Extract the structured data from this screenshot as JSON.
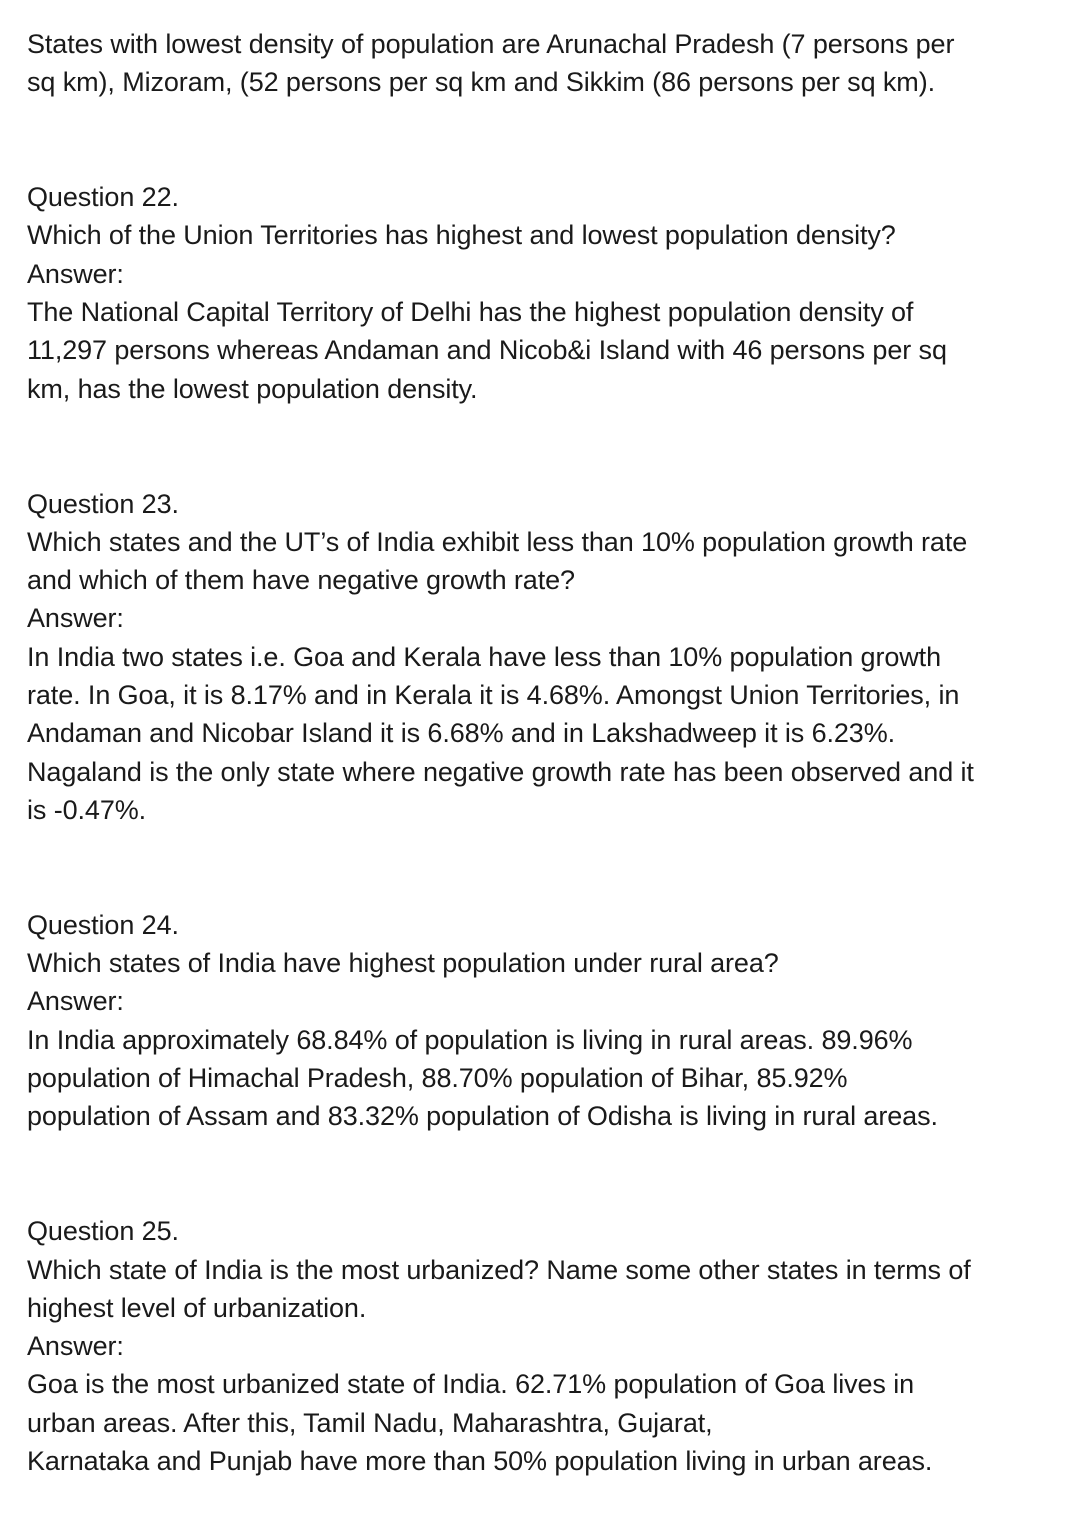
{
  "intro": {
    "lines": [
      "States with lowest density of population are Arunachal Pradesh (7 persons per",
      "sq km), Mizoram, (52 persons per sq km and Sikkim (86 persons per sq km)."
    ]
  },
  "questions": [
    {
      "heading": "Question 22.",
      "question_lines": [
        "Which of the Union Territories has highest and lowest population density?"
      ],
      "answer_label": "Answer:",
      "answer_lines": [
        "The National Capital Territory of Delhi has the highest population density of",
        "11,297 persons whereas Andaman and Nicob&i Island with 46 persons per sq",
        "km, has the lowest population density."
      ]
    },
    {
      "heading": "Question 23.",
      "question_lines": [
        "Which states and the UT’s of India exhibit less than 10% population growth rate",
        "and which of them have negative growth rate?"
      ],
      "answer_label": "Answer:",
      "answer_lines": [
        "In India two states i.e. Goa and Kerala have less than 10% population growth",
        "rate. In Goa, it is 8.17% and in Kerala it is 4.68%. Amongst Union Territories, in",
        "Andaman and Nicobar Island it is 6.68% and in Lakshadweep it is 6.23%.",
        "Nagaland is the only state where negative growth rate has been observed and it",
        "is -0.47%."
      ]
    },
    {
      "heading": "Question 24.",
      "question_lines": [
        "Which states of India have highest population under rural area?"
      ],
      "answer_label": "Answer:",
      "answer_lines": [
        "In India approximately 68.84% of population is living in rural areas. 89.96%",
        "population of Himachal Pradesh, 88.70% population of Bihar, 85.92%",
        "population of Assam and 83.32% population of Odisha is living in rural areas."
      ]
    },
    {
      "heading": "Question 25.",
      "question_lines": [
        "Which state of India is the most urbanized? Name some other states in terms of",
        "highest level of urbanization."
      ],
      "answer_label": "Answer:",
      "answer_lines": [
        "Goa is the most urbanized state of India. 62.71% population of Goa lives in",
        "urban areas. After this, Tamil Nadu, Maharashtra, Gujarat,",
        "Karnataka and Punjab have more than 50% population living in urban areas."
      ]
    }
  ]
}
